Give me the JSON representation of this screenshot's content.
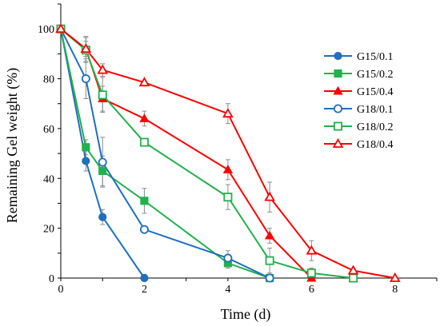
{
  "chart_data": {
    "type": "line",
    "title": "",
    "xlabel": "Time (d)",
    "ylabel": "Remaining Gel weight  (%)",
    "xlim": [
      0,
      9
    ],
    "ylim": [
      0,
      110
    ],
    "xticks": [
      0,
      2,
      4,
      6,
      8
    ],
    "yticks": [
      0,
      20,
      40,
      60,
      80,
      100
    ],
    "grid": false,
    "legend_position": "right",
    "series": [
      {
        "name": "G15/0.1",
        "color": "#1f6fbf",
        "marker": "circle",
        "filled": true,
        "x": [
          0,
          0.6,
          1,
          2
        ],
        "y": [
          100,
          47,
          24.5,
          0
        ],
        "err": [
          0,
          4,
          3,
          1.5
        ]
      },
      {
        "name": "G15/0.2",
        "color": "#22b14c",
        "marker": "square",
        "filled": true,
        "x": [
          0,
          0.6,
          1,
          2,
          4,
          5
        ],
        "y": [
          100,
          52.5,
          43,
          31,
          6,
          0
        ],
        "err": [
          0,
          3,
          6,
          5,
          2,
          0
        ]
      },
      {
        "name": "G15/0.4",
        "color": "#ff0000",
        "marker": "triangle",
        "filled": true,
        "x": [
          0,
          0.6,
          1,
          2,
          4,
          5,
          6
        ],
        "y": [
          100,
          92,
          72,
          64,
          43.5,
          17,
          0
        ],
        "err": [
          0,
          3,
          5,
          3,
          4,
          3,
          0
        ]
      },
      {
        "name": "G18/0.1",
        "color": "#1f6fbf",
        "marker": "circle",
        "filled": false,
        "x": [
          0,
          0.6,
          1,
          2,
          4,
          5
        ],
        "y": [
          100,
          80,
          46.5,
          19.5,
          8,
          0
        ],
        "err": [
          0,
          8,
          10,
          1,
          3,
          0
        ]
      },
      {
        "name": "G18/0.2",
        "color": "#22b14c",
        "marker": "square",
        "filled": false,
        "x": [
          0,
          0.6,
          1,
          2,
          4,
          5,
          6,
          7
        ],
        "y": [
          100,
          91.5,
          73.5,
          54.5,
          32.5,
          7,
          2,
          0
        ],
        "err": [
          0,
          5,
          7,
          0,
          5,
          5,
          2,
          0
        ]
      },
      {
        "name": "G18/0.4",
        "color": "#ff0000",
        "marker": "triangle",
        "filled": false,
        "x": [
          0,
          0.6,
          1,
          2,
          4,
          5,
          6,
          7,
          8
        ],
        "y": [
          100,
          92,
          83.5,
          78.5,
          66,
          32.5,
          11,
          3,
          0
        ],
        "err": [
          0,
          5,
          2.5,
          0,
          4,
          6,
          4,
          0,
          0
        ]
      }
    ]
  }
}
